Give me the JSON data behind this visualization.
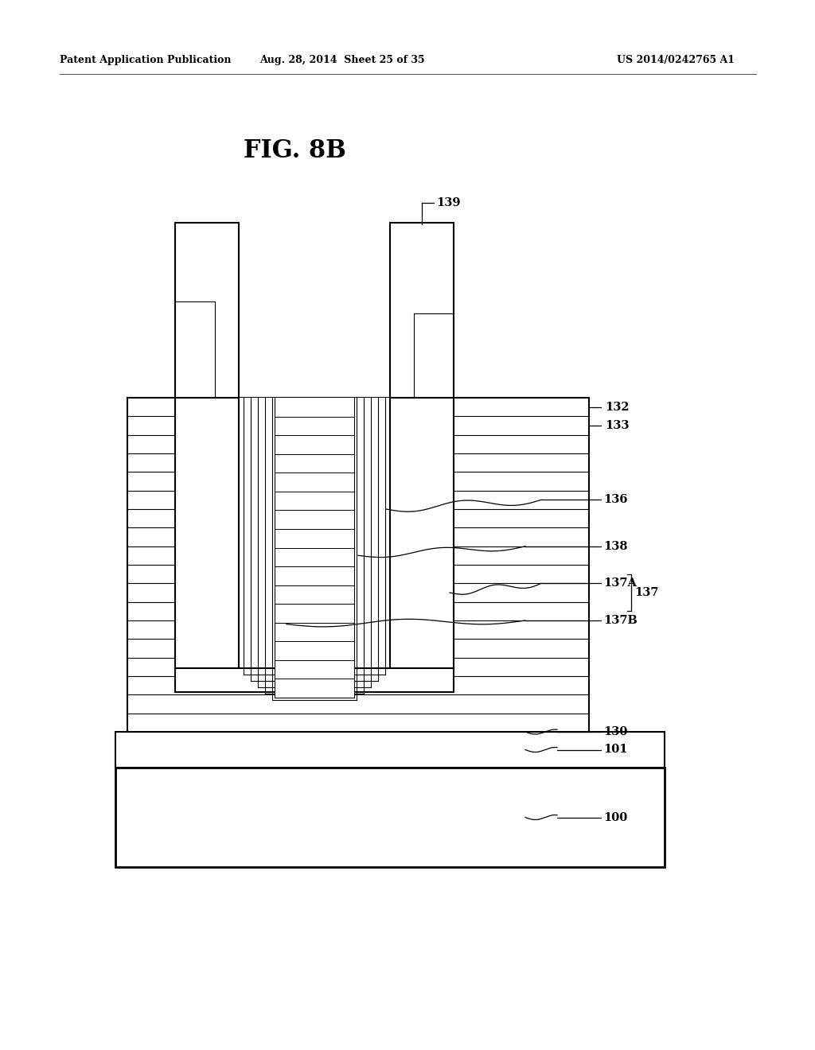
{
  "fig_label": "FIG. 8B",
  "header_left": "Patent Application Publication",
  "header_mid": "Aug. 28, 2014  Sheet 25 of 35",
  "header_right": "US 2014/0242765 A1",
  "bg_color": "#ffffff",
  "line_color": "#000000",
  "label_139": "139",
  "label_132": "132",
  "label_133": "133",
  "label_136": "136",
  "label_138": "138",
  "label_137A": "137A",
  "label_137": "137",
  "label_137B": "137B",
  "label_130": "130",
  "label_101": "101",
  "label_100": "100"
}
